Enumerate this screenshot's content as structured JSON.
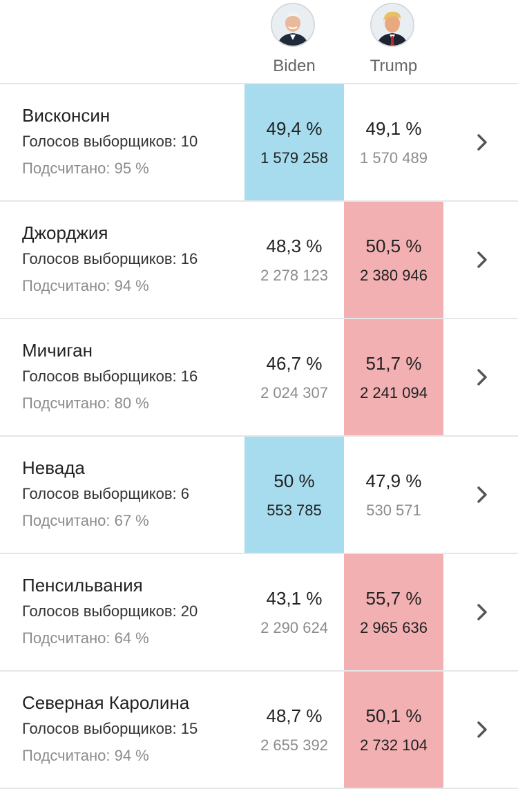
{
  "colors": {
    "dem_win": "#a6dcee",
    "rep_win": "#f2b0b3"
  },
  "header": {
    "candidates": [
      {
        "name": "Biden",
        "avatar_icon": "candidate-portrait-icon"
      },
      {
        "name": "Trump",
        "avatar_icon": "candidate-portrait-icon"
      }
    ]
  },
  "states": [
    {
      "name": "Висконсин",
      "electoral_votes": "Голосов выборщиков: 10",
      "counted": "Подсчитано: 95 %",
      "winner": 0,
      "results": [
        {
          "pct": "49,4 %",
          "votes": "1 579 258"
        },
        {
          "pct": "49,1 %",
          "votes": "1 570 489"
        }
      ]
    },
    {
      "name": "Джорджия",
      "electoral_votes": "Голосов выборщиков: 16",
      "counted": "Подсчитано: 94 %",
      "winner": 1,
      "results": [
        {
          "pct": "48,3 %",
          "votes": "2 278 123"
        },
        {
          "pct": "50,5 %",
          "votes": "2 380 946"
        }
      ]
    },
    {
      "name": "Мичиган",
      "electoral_votes": "Голосов выборщиков: 16",
      "counted": "Подсчитано: 80 %",
      "winner": 1,
      "results": [
        {
          "pct": "46,7 %",
          "votes": "2 024 307"
        },
        {
          "pct": "51,7 %",
          "votes": "2 241 094"
        }
      ]
    },
    {
      "name": "Невада",
      "electoral_votes": "Голосов выборщиков: 6",
      "counted": "Подсчитано: 67 %",
      "winner": 0,
      "results": [
        {
          "pct": "50 %",
          "votes": "553 785"
        },
        {
          "pct": "47,9 %",
          "votes": "530 571"
        }
      ]
    },
    {
      "name": "Пенсильвания",
      "electoral_votes": "Голосов выборщиков: 20",
      "counted": "Подсчитано: 64 %",
      "winner": 1,
      "results": [
        {
          "pct": "43,1 %",
          "votes": "2 290 624"
        },
        {
          "pct": "55,7 %",
          "votes": "2 965 636"
        }
      ]
    },
    {
      "name": "Северная Каролина",
      "electoral_votes": "Голосов выборщиков: 15",
      "counted": "Подсчитано: 94 %",
      "winner": 1,
      "results": [
        {
          "pct": "48,7 %",
          "votes": "2 655 392"
        },
        {
          "pct": "50,1 %",
          "votes": "2 732 104"
        }
      ]
    }
  ]
}
